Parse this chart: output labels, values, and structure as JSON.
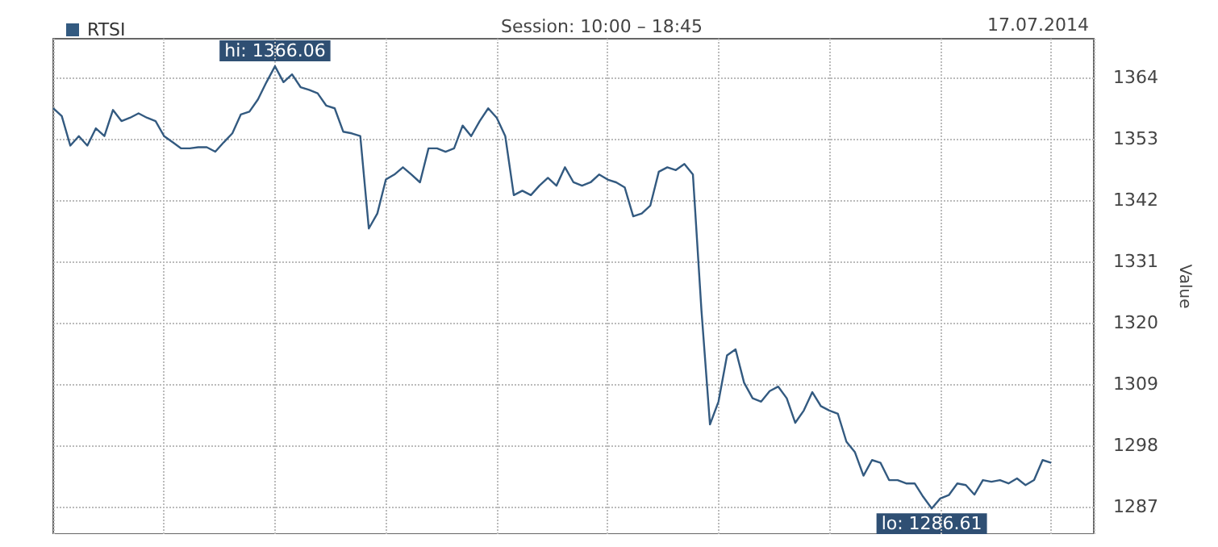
{
  "chart_data": {
    "type": "line",
    "subtitle": "Session: 10:00 – 18:45",
    "ylabel": "Value",
    "annotations": [
      "17.07.2014",
      {
        "text": "hi: 1366.06",
        "y": 1366.06
      },
      {
        "text": "lo: 1286.61",
        "y": 1286.61
      }
    ],
    "categories": [
      null,
      null,
      null,
      null,
      null,
      null,
      null,
      null,
      null,
      null,
      null,
      null,
      null,
      null,
      null,
      null,
      null,
      null,
      null,
      null,
      null,
      null,
      null,
      null,
      null,
      null,
      null,
      null,
      null,
      null,
      null,
      null,
      null,
      null,
      null,
      null,
      null,
      null,
      null,
      null,
      null,
      null,
      null,
      null,
      null,
      null,
      null,
      null,
      null,
      null,
      null,
      null,
      null,
      null,
      null,
      null,
      null,
      null,
      null,
      null,
      null,
      null,
      null,
      null,
      null,
      null,
      null,
      null,
      null,
      null,
      null,
      null,
      null,
      null,
      null,
      null,
      null,
      null,
      null,
      null,
      null,
      null,
      null,
      null,
      null,
      null,
      null,
      null,
      null,
      null,
      null,
      null,
      null,
      null,
      null,
      null,
      null,
      null,
      null,
      null,
      null,
      null,
      null,
      null,
      null,
      null,
      null,
      null,
      null,
      null,
      null,
      null,
      null,
      null,
      null,
      null,
      null,
      null,
      null,
      null,
      null,
      null,
      null
    ],
    "series": [
      {
        "name": "RTSI",
        "color": "#335a80",
        "values": [
          1358.5,
          1357.1,
          1351.8,
          1353.5,
          1351.8,
          1354.9,
          1353.5,
          1358.2,
          1356.2,
          1356.8,
          1357.6,
          1356.8,
          1356.2,
          1353.5,
          1352.4,
          1351.3,
          1351.3,
          1351.5,
          1351.5,
          1350.7,
          1352.4,
          1354.0,
          1357.4,
          1357.9,
          1360.1,
          1363.2,
          1366.06,
          1363.2,
          1364.6,
          1362.3,
          1361.8,
          1361.2,
          1359.0,
          1358.5,
          1354.3,
          1354.0,
          1353.5,
          1336.9,
          1339.6,
          1345.7,
          1346.6,
          1347.9,
          1346.6,
          1345.2,
          1351.3,
          1351.3,
          1350.7,
          1351.3,
          1355.4,
          1353.5,
          1356.2,
          1358.5,
          1356.8,
          1353.5,
          1342.9,
          1343.7,
          1342.9,
          1344.6,
          1346.0,
          1344.6,
          1347.9,
          1345.2,
          1344.6,
          1345.2,
          1346.6,
          1345.7,
          1345.2,
          1344.3,
          1339.1,
          1339.6,
          1341.0,
          1347.1,
          1347.9,
          1347.4,
          1348.5,
          1346.6,
          1322.2,
          1301.7,
          1305.8,
          1314.1,
          1315.2,
          1309.2,
          1306.4,
          1305.8,
          1307.7,
          1308.5,
          1306.4,
          1302.0,
          1304.2,
          1307.5,
          1305.0,
          1304.2,
          1303.6,
          1298.6,
          1296.7,
          1292.5,
          1295.3,
          1294.8,
          1291.7,
          1291.7,
          1291.1,
          1291.1,
          1288.7,
          1286.61,
          1288.4,
          1289.0,
          1291.1,
          1290.8,
          1289.1,
          1291.7,
          1291.4,
          1291.7,
          1291.1,
          1292.0,
          1290.8,
          1291.7,
          1295.3,
          1294.8,
          null,
          null,
          null,
          null,
          null
        ]
      }
    ],
    "ylim": [
      1282,
      1371
    ],
    "yticks": [
      1287,
      1298,
      1309,
      1320,
      1331,
      1342,
      1353,
      1364
    ],
    "grid": true,
    "legend": "top left",
    "line_style": "solid"
  }
}
